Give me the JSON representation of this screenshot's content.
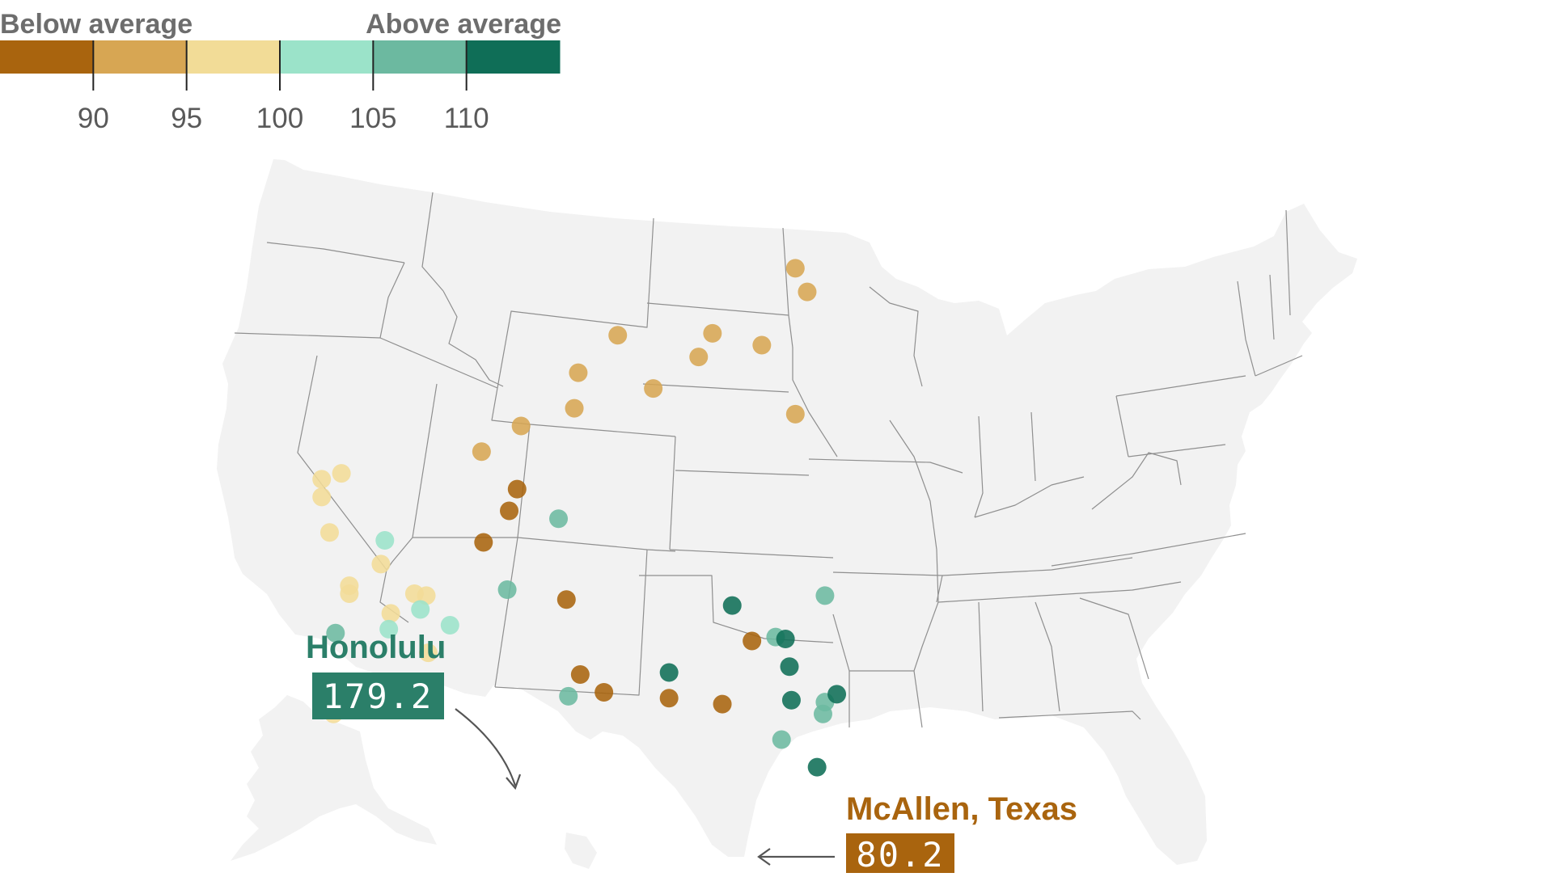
{
  "legend": {
    "below_label": "Below average",
    "above_label": "Above average",
    "ticks": [
      "90",
      "95",
      "100",
      "105",
      "110"
    ],
    "colors": [
      "#a9640e",
      "#d7a653",
      "#f2dc97",
      "#9be3c9",
      "#6cb9a0",
      "#0f6e57"
    ]
  },
  "callouts": {
    "honolulu": {
      "name": "Honolulu",
      "value": "179.2",
      "color": "#2b7f69"
    },
    "mcallen": {
      "name": "McAllen, Texas",
      "value": "80.2",
      "color": "#a9640e"
    }
  },
  "map": {
    "land_color": "#f2f2f2",
    "border_color": "#8f8f8f",
    "cities_by_class": {
      "0": [
        [
          381,
          325
        ],
        [
          366,
          357
        ],
        [
          339,
          354
        ],
        [
          306,
          351
        ],
        [
          294,
          342
        ],
        [
          287,
          304
        ],
        [
          262,
          248
        ],
        [
          258,
          259
        ],
        [
          245,
          275
        ]
      ],
      "1": [
        [
          244,
          229
        ],
        [
          264,
          216
        ],
        [
          293,
          189
        ],
        [
          291,
          207
        ],
        [
          313,
          170
        ],
        [
          331,
          197
        ],
        [
          354,
          181
        ],
        [
          386,
          175
        ],
        [
          409,
          148
        ],
        [
          403,
          210
        ],
        [
          403,
          136
        ],
        [
          361,
          169
        ]
      ],
      "2": [
        [
          173,
          240
        ],
        [
          163,
          243
        ],
        [
          163,
          252
        ],
        [
          167,
          270
        ],
        [
          177,
          301
        ],
        [
          193,
          286
        ],
        [
          198,
          311
        ],
        [
          210,
          301
        ],
        [
          216,
          302
        ],
        [
          177,
          297
        ],
        [
          217,
          331
        ],
        [
          207,
          351
        ],
        [
          217,
          357
        ],
        [
          178,
          358
        ],
        [
          169,
          362
        ]
      ],
      "3": [
        [
          195,
          274
        ],
        [
          197,
          319
        ],
        [
          213,
          309
        ],
        [
          228,
          317
        ]
      ],
      "4": [
        [
          170,
          321
        ],
        [
          283,
          263
        ],
        [
          257,
          299
        ],
        [
          288,
          353
        ],
        [
          396,
          375
        ],
        [
          417,
          362
        ],
        [
          418,
          356
        ],
        [
          393,
          323
        ],
        [
          418,
          302
        ]
      ],
      "5": [
        [
          371,
          307
        ],
        [
          339,
          341
        ],
        [
          398,
          324
        ],
        [
          400,
          338
        ],
        [
          401,
          355
        ],
        [
          424,
          352
        ],
        [
          414,
          389
        ]
      ]
    }
  }
}
